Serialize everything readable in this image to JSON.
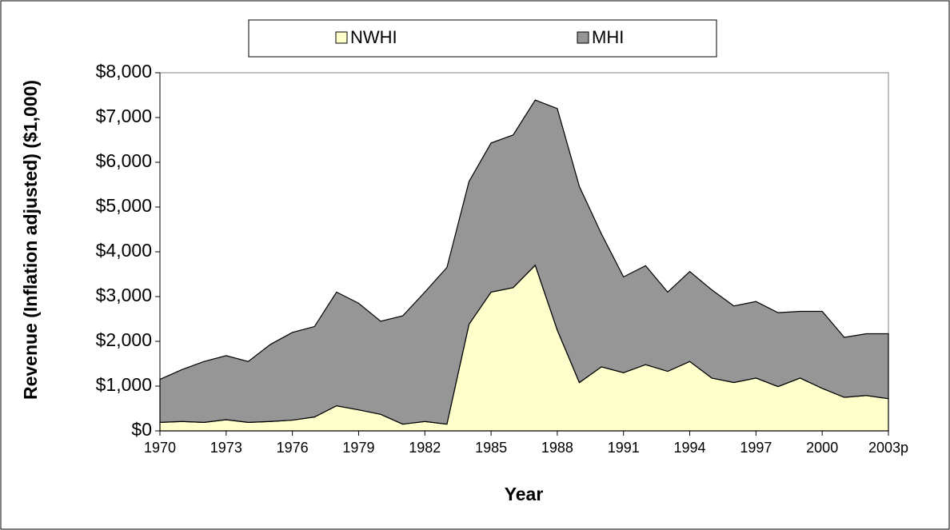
{
  "chart_data": {
    "type": "stacked-area",
    "x_label": "Year",
    "y_label": "Revenue (Inflation adjusted) ($1,000)",
    "categories": [
      "1970",
      null,
      null,
      "1973",
      null,
      null,
      "1976",
      null,
      null,
      "1979",
      null,
      null,
      "1982",
      null,
      null,
      "1985",
      null,
      null,
      "1988",
      null,
      null,
      "1991",
      null,
      null,
      "1994",
      null,
      null,
      "1997",
      null,
      null,
      "2000",
      null,
      null,
      "2003p"
    ],
    "series": [
      {
        "name": "NWHI",
        "color": "#ffffcc",
        "values": [
          190,
          210,
          190,
          250,
          190,
          210,
          240,
          310,
          560,
          470,
          370,
          150,
          210,
          150,
          2380,
          3100,
          3200,
          3700,
          2250,
          1080,
          1430,
          1300,
          1480,
          1330,
          1550,
          1180,
          1080,
          1180,
          990,
          1180,
          950,
          750,
          790,
          720
        ]
      },
      {
        "name": "MHI",
        "color": "#969696",
        "values": [
          960,
          1160,
          1360,
          1430,
          1360,
          1720,
          1960,
          2020,
          2540,
          2380,
          2080,
          2420,
          2890,
          3500,
          3190,
          3330,
          3410,
          3690,
          4950,
          4380,
          2970,
          2140,
          2210,
          1770,
          2010,
          1970,
          1710,
          1710,
          1650,
          1490,
          1720,
          1340,
          1380,
          1450
        ]
      }
    ],
    "ylim": [
      0,
      8000
    ],
    "yticks": [
      {
        "value": 0,
        "label": "$0"
      },
      {
        "value": 1000,
        "label": "$1,000"
      },
      {
        "value": 2000,
        "label": "$2,000"
      },
      {
        "value": 3000,
        "label": "$3,000"
      },
      {
        "value": 4000,
        "label": "$4,000"
      },
      {
        "value": 5000,
        "label": "$5,000"
      },
      {
        "value": 6000,
        "label": "$6,000"
      },
      {
        "value": 7000,
        "label": "$7,000"
      },
      {
        "value": 8000,
        "label": "$8,000"
      }
    ],
    "legend": "top"
  }
}
